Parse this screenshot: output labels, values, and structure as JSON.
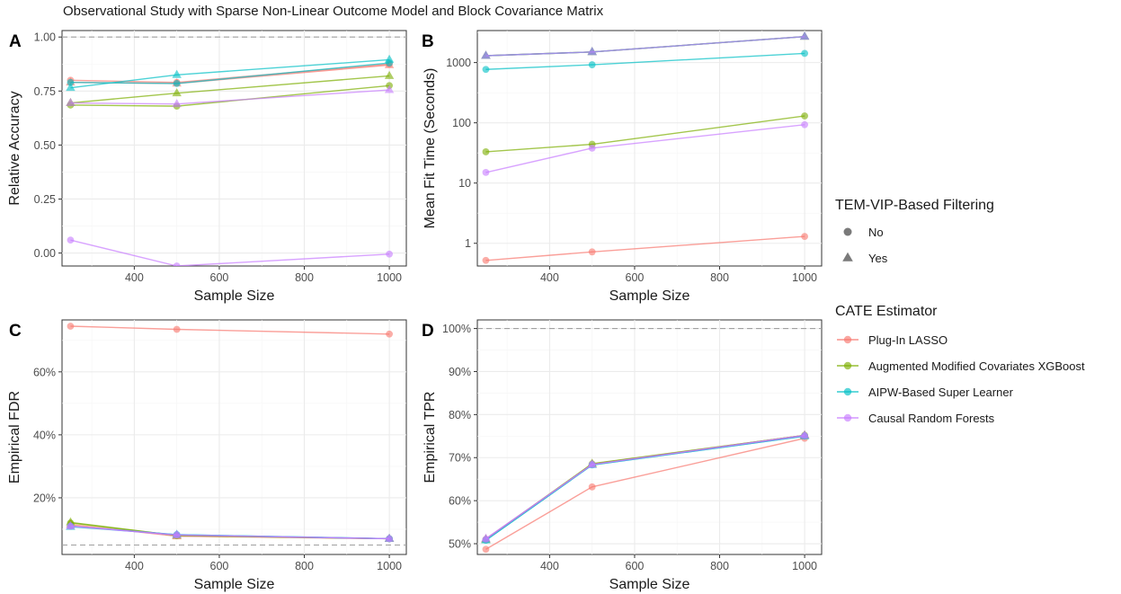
{
  "title": "Observational Study with Sparse Non-Linear Outcome Model and Block Covariance Matrix",
  "colors": {
    "Plug-In LASSO": "#F8766D",
    "Augmented Modified Covariates XGBoost": "#7CAE00",
    "AIPW-Based Super Learner": "#00BFC4",
    "Causal Random Forests": "#C77CFF"
  },
  "legend": {
    "shape_title": "TEM-VIP-Based Filtering",
    "shapes": [
      {
        "label": "No",
        "shape": "circle"
      },
      {
        "label": "Yes",
        "shape": "triangle"
      }
    ],
    "color_title": "CATE Estimator",
    "estimators": [
      "Plug-In LASSO",
      "Augmented Modified Covariates XGBoost",
      "AIPW-Based Super Learner",
      "Causal Random Forests"
    ]
  },
  "chart_data": [
    {
      "panel": "A",
      "type": "line",
      "xlabel": "Sample Size",
      "ylabel": "Relative Accuracy",
      "xlim": [
        230,
        1040
      ],
      "ylim": [
        -0.06,
        1.03
      ],
      "xticks": [
        400,
        600,
        800,
        1000
      ],
      "yticks": [
        0.0,
        0.25,
        0.5,
        0.75,
        1.0
      ],
      "ytick_labels": [
        "0.00",
        "0.25",
        "0.50",
        "0.75",
        "1.00"
      ],
      "reference_line": 1.0,
      "x": [
        250,
        500,
        1000
      ],
      "series": [
        {
          "estimator": "Plug-In LASSO",
          "filtering": "No",
          "values": [
            0.8,
            0.79,
            0.875
          ]
        },
        {
          "estimator": "Plug-In LASSO",
          "filtering": "Yes",
          "values": [
            0.79,
            0.785,
            0.87
          ]
        },
        {
          "estimator": "Augmented Modified Covariates XGBoost",
          "filtering": "No",
          "values": [
            0.685,
            0.68,
            0.775
          ]
        },
        {
          "estimator": "Augmented Modified Covariates XGBoost",
          "filtering": "Yes",
          "values": [
            0.695,
            0.74,
            0.82
          ]
        },
        {
          "estimator": "AIPW-Based Super Learner",
          "filtering": "No",
          "values": [
            0.79,
            0.785,
            0.88
          ]
        },
        {
          "estimator": "AIPW-Based Super Learner",
          "filtering": "Yes",
          "values": [
            0.765,
            0.825,
            0.895
          ]
        },
        {
          "estimator": "Causal Random Forests",
          "filtering": "No",
          "values": [
            0.06,
            -0.06,
            -0.005
          ]
        },
        {
          "estimator": "Causal Random Forests",
          "filtering": "Yes",
          "values": [
            0.695,
            0.69,
            0.755
          ]
        }
      ]
    },
    {
      "panel": "B",
      "type": "line",
      "yscale": "log",
      "xlabel": "Sample Size",
      "ylabel": "Mean Fit Time (Seconds)",
      "xlim": [
        230,
        1040
      ],
      "ylim": [
        0.42,
        3400
      ],
      "xticks": [
        400,
        600,
        800,
        1000
      ],
      "yticks": [
        1,
        10,
        100,
        1000
      ],
      "ytick_labels": [
        "1",
        "10",
        "100",
        "1000"
      ],
      "x": [
        250,
        500,
        1000
      ],
      "series": [
        {
          "estimator": "Plug-In LASSO",
          "filtering": "No",
          "values": [
            0.52,
            0.72,
            1.3
          ]
        },
        {
          "estimator": "Plug-In LASSO",
          "filtering": "Yes",
          "values": [
            1300,
            1500,
            2700
          ]
        },
        {
          "estimator": "Augmented Modified Covariates XGBoost",
          "filtering": "No",
          "values": [
            33,
            44,
            130
          ]
        },
        {
          "estimator": "Augmented Modified Covariates XGBoost",
          "filtering": "Yes",
          "values": [
            1300,
            1500,
            2700
          ]
        },
        {
          "estimator": "AIPW-Based Super Learner",
          "filtering": "No",
          "values": [
            770,
            920,
            1420
          ]
        },
        {
          "estimator": "AIPW-Based Super Learner",
          "filtering": "Yes",
          "values": [
            1300,
            1500,
            2700
          ]
        },
        {
          "estimator": "Causal Random Forests",
          "filtering": "No",
          "values": [
            15,
            38,
            93
          ]
        },
        {
          "estimator": "Causal Random Forests",
          "filtering": "Yes",
          "values": [
            1300,
            1500,
            2700
          ]
        }
      ]
    },
    {
      "panel": "C",
      "type": "line",
      "xlabel": "Sample Size",
      "ylabel": "Empirical FDR",
      "xlim": [
        230,
        1040
      ],
      "ylim": [
        0.02,
        0.765
      ],
      "xticks": [
        400,
        600,
        800,
        1000
      ],
      "yticks": [
        0.2,
        0.4,
        0.6
      ],
      "ytick_labels": [
        "20%",
        "40%",
        "60%"
      ],
      "reference_line": 0.05,
      "x": [
        250,
        500,
        1000
      ],
      "series": [
        {
          "estimator": "Plug-In LASSO",
          "filtering": "No",
          "values": [
            0.745,
            0.735,
            0.72
          ]
        },
        {
          "estimator": "Plug-In LASSO",
          "filtering": "Yes",
          "values": [
            0.115,
            0.078,
            0.07
          ]
        },
        {
          "estimator": "Augmented Modified Covariates XGBoost",
          "filtering": "No",
          "values": [
            0.12,
            0.08,
            0.07
          ]
        },
        {
          "estimator": "Augmented Modified Covariates XGBoost",
          "filtering": "Yes",
          "values": [
            0.122,
            0.08,
            0.07
          ]
        },
        {
          "estimator": "AIPW-Based Super Learner",
          "filtering": "No",
          "values": [
            0.11,
            0.083,
            0.07
          ]
        },
        {
          "estimator": "AIPW-Based Super Learner",
          "filtering": "Yes",
          "values": [
            0.108,
            0.083,
            0.07
          ]
        },
        {
          "estimator": "Causal Random Forests",
          "filtering": "No",
          "values": [
            0.11,
            0.082,
            0.07
          ]
        },
        {
          "estimator": "Causal Random Forests",
          "filtering": "Yes",
          "values": [
            0.11,
            0.082,
            0.07
          ]
        }
      ]
    },
    {
      "panel": "D",
      "type": "line",
      "xlabel": "Sample Size",
      "ylabel": "Empirical TPR",
      "xlim": [
        230,
        1040
      ],
      "ylim": [
        0.475,
        1.02
      ],
      "xticks": [
        400,
        600,
        800,
        1000
      ],
      "yticks": [
        0.5,
        0.6,
        0.7,
        0.8,
        0.9,
        1.0
      ],
      "ytick_labels": [
        "50%",
        "60%",
        "70%",
        "80%",
        "90%",
        "100%"
      ],
      "reference_line": 1.0,
      "x": [
        250,
        500,
        1000
      ],
      "series": [
        {
          "estimator": "Plug-In LASSO",
          "filtering": "No",
          "values": [
            0.487,
            0.632,
            0.745
          ]
        },
        {
          "estimator": "Plug-In LASSO",
          "filtering": "Yes",
          "values": [
            0.51,
            0.685,
            0.752
          ]
        },
        {
          "estimator": "Augmented Modified Covariates XGBoost",
          "filtering": "No",
          "values": [
            0.51,
            0.685,
            0.752
          ]
        },
        {
          "estimator": "Augmented Modified Covariates XGBoost",
          "filtering": "Yes",
          "values": [
            0.51,
            0.686,
            0.752
          ]
        },
        {
          "estimator": "AIPW-Based Super Learner",
          "filtering": "No",
          "values": [
            0.508,
            0.683,
            0.75
          ]
        },
        {
          "estimator": "AIPW-Based Super Learner",
          "filtering": "Yes",
          "values": [
            0.508,
            0.683,
            0.75
          ]
        },
        {
          "estimator": "Causal Random Forests",
          "filtering": "No",
          "values": [
            0.51,
            0.684,
            0.751
          ]
        },
        {
          "estimator": "Causal Random Forests",
          "filtering": "Yes",
          "values": [
            0.512,
            0.684,
            0.752
          ]
        }
      ]
    }
  ]
}
